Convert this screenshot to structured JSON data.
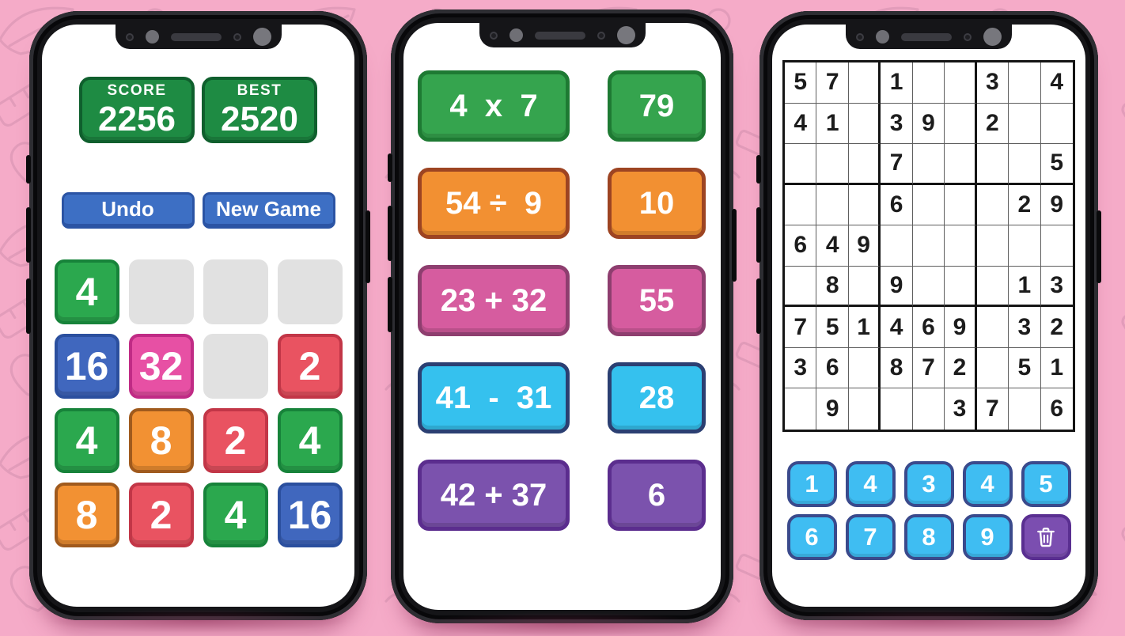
{
  "colors": {
    "background_pink": "#F5ABC8",
    "doodle_pink": "#D38FAE",
    "phone_frame": "#151518",
    "screen_white": "#FFFFFF",
    "score_green": "#1E8B43",
    "score_green_border": "#0F5F2D",
    "button_blue": "#3D6FC4",
    "button_blue_border": "#2B54A4",
    "tile_green": "#2BA84E",
    "tile_green_border": "#17833A",
    "tile_blue": "#4067BE",
    "tile_blue_border": "#2B4F9E",
    "tile_magenta": "#E750A4",
    "tile_magenta_border": "#C02B85",
    "tile_red": "#E95361",
    "tile_red_border": "#C23647",
    "tile_orange": "#F29133",
    "tile_orange_border": "#A05A1D",
    "tile_empty": "#E1E1E1",
    "card_green": "#35A44E",
    "card_green_border": "#1E7A33",
    "card_orange": "#F29032",
    "card_orange_border": "#9D4422",
    "card_pink": "#D65C9F",
    "card_pink_border": "#8E3E6F",
    "card_cyan": "#35C1EE",
    "card_cyan_border": "#2B3F72",
    "card_purple": "#7B52AD",
    "card_purple_border": "#5B2D8E",
    "pad_cyan": "#3FBDF2",
    "pad_cyan_border": "#3A4A8C",
    "pad_purple": "#7B4EB0",
    "pad_purple_border": "#5A2F91",
    "sudoku_line_thick": "#141414",
    "sudoku_line_thin": "#5E5E5E",
    "sudoku_number": "#1C1C1C",
    "white_text": "#FFFFFF"
  },
  "left_phone": {
    "score_card": {
      "label": "SCORE",
      "value": "2256"
    },
    "best_card": {
      "label": "BEST",
      "value": "2520"
    },
    "undo_button": "Undo",
    "new_game_button": "New Game",
    "grid": [
      [
        {
          "value": "4",
          "color": "green"
        },
        {
          "value": "",
          "color": "empty"
        },
        {
          "value": "",
          "color": "empty"
        },
        {
          "value": "",
          "color": "empty"
        }
      ],
      [
        {
          "value": "16",
          "color": "blue"
        },
        {
          "value": "32",
          "color": "magenta"
        },
        {
          "value": "",
          "color": "empty"
        },
        {
          "value": "2",
          "color": "red"
        }
      ],
      [
        {
          "value": "4",
          "color": "green"
        },
        {
          "value": "8",
          "color": "orange"
        },
        {
          "value": "2",
          "color": "red"
        },
        {
          "value": "4",
          "color": "green"
        }
      ],
      [
        {
          "value": "8",
          "color": "orange"
        },
        {
          "value": "2",
          "color": "red"
        },
        {
          "value": "4",
          "color": "green"
        },
        {
          "value": "16",
          "color": "blue"
        }
      ]
    ]
  },
  "middle_phone": {
    "rows": [
      {
        "problem": "4  x  7",
        "answer": "79",
        "color": "green"
      },
      {
        "problem": "54 ÷  9",
        "answer": "10",
        "color": "orange"
      },
      {
        "problem": "23 + 32",
        "answer": "55",
        "color": "pink"
      },
      {
        "problem": "41  -  31",
        "answer": "28",
        "color": "cyan"
      },
      {
        "problem": "42 + 37",
        "answer": "6",
        "color": "purple"
      }
    ]
  },
  "right_phone": {
    "sudoku": [
      [
        "5",
        "7",
        "",
        "1",
        "",
        "",
        "3",
        "",
        "4"
      ],
      [
        "4",
        "1",
        "",
        "3",
        "9",
        "",
        "2",
        "",
        ""
      ],
      [
        "",
        "",
        "",
        "7",
        "",
        "",
        "",
        "",
        "5"
      ],
      [
        "",
        "",
        "",
        "6",
        "",
        "",
        "",
        "2",
        "9"
      ],
      [
        "6",
        "4",
        "9",
        "",
        "",
        "",
        "",
        "",
        ""
      ],
      [
        "",
        "8",
        "",
        "9",
        "",
        "",
        "",
        "1",
        "3"
      ],
      [
        "7",
        "5",
        "1",
        "4",
        "6",
        "9",
        "",
        "3",
        "2"
      ],
      [
        "3",
        "6",
        "",
        "8",
        "7",
        "2",
        "",
        "5",
        "1"
      ],
      [
        "",
        "9",
        "",
        "",
        "",
        "3",
        "7",
        "",
        "6"
      ]
    ],
    "numpad": {
      "row1": [
        "1",
        "4",
        "3",
        "4",
        "5"
      ],
      "row2": [
        "6",
        "7",
        "8",
        "9"
      ],
      "trash_icon": "trash-icon"
    }
  }
}
